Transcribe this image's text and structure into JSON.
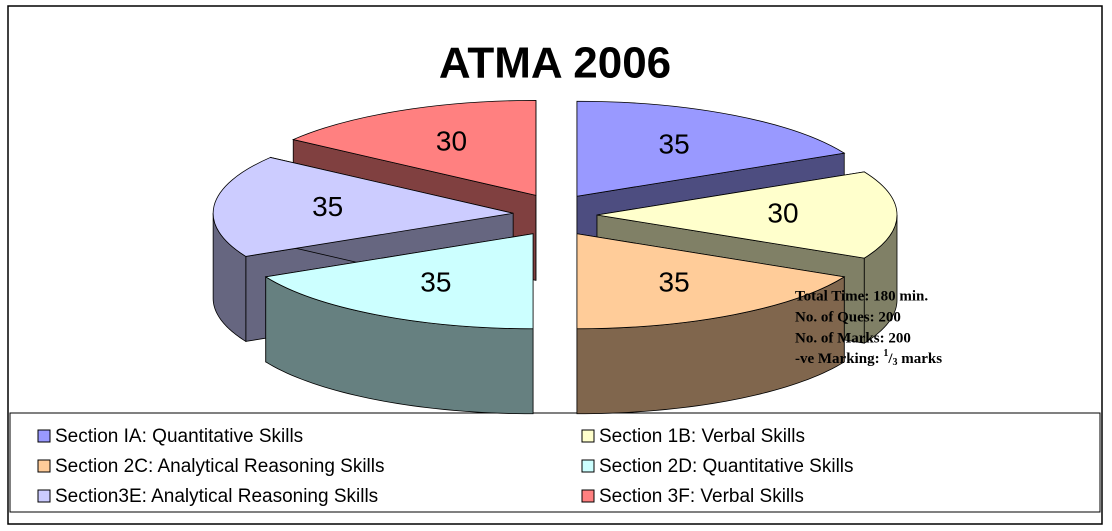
{
  "chart_data": {
    "type": "pie3d",
    "title": "ATMA 2006",
    "categories": [
      "Section IA: Quantitative Skills",
      "Section 1B: Verbal Skills",
      "Section 2C: Analytical Reasoning Skills",
      "Section 2D: Quantitative Skills",
      "Section3E: Analytical Reasoning Skills",
      "Section 3F: Verbal Skills"
    ],
    "values": [
      35,
      30,
      35,
      35,
      35,
      30
    ],
    "colors": [
      "#9999ff",
      "#ffffcc",
      "#ffcc99",
      "#ccffff",
      "#ccccff",
      "#ff8080"
    ],
    "annotations": [
      "Total Time: 180 min.",
      "No. of Ques: 200",
      "No. of Marks: 200",
      [
        "-ve Marking: ",
        "1",
        "/",
        "3",
        " marks"
      ]
    ],
    "legend": "bottom"
  }
}
